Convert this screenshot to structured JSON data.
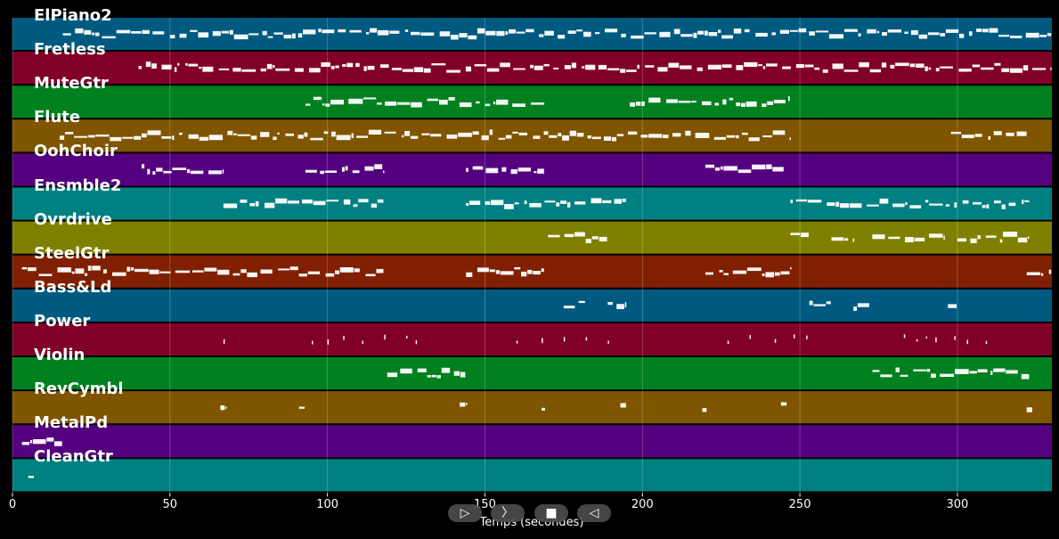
{
  "chart_data": {
    "type": "piano-roll",
    "xlabel": "Temps (secondes)",
    "xlim": [
      0,
      330
    ],
    "xticks": [
      0,
      50,
      100,
      150,
      200,
      250,
      300
    ],
    "tracks": [
      {
        "name": "ElPiano2",
        "color": "#005a80",
        "notes": [
          [
            16,
            160
          ],
          [
            160,
            330
          ]
        ]
      },
      {
        "name": "Fretless",
        "color": "#800028",
        "notes": [
          [
            40,
            330
          ]
        ]
      },
      {
        "name": "MuteGtr",
        "color": "#00801e",
        "notes": [
          [
            93,
            170
          ],
          [
            196,
            247
          ]
        ]
      },
      {
        "name": "Flute",
        "color": "#805500",
        "notes": [
          [
            15,
            247
          ],
          [
            298,
            323
          ]
        ]
      },
      {
        "name": "OohChoir",
        "color": "#55007f",
        "notes": [
          [
            41,
            67
          ],
          [
            93,
            118
          ],
          [
            144,
            169
          ],
          [
            220,
            246
          ]
        ]
      },
      {
        "name": "Ensmble2",
        "color": "#008080",
        "notes": [
          [
            67,
            118
          ],
          [
            144,
            195
          ],
          [
            247,
            323
          ]
        ]
      },
      {
        "name": "Ovrdrive",
        "color": "#808000",
        "notes": [
          [
            170,
            182
          ],
          [
            182,
            189
          ],
          [
            247,
            253
          ],
          [
            260,
            267
          ],
          [
            273,
            296
          ],
          [
            300,
            323
          ]
        ]
      },
      {
        "name": "SteelGtr",
        "color": "#802000",
        "notes": [
          [
            3,
            118
          ],
          [
            144,
            170
          ],
          [
            220,
            247
          ],
          [
            322,
            330
          ]
        ]
      },
      {
        "name": "Bass&Ld",
        "color": "#005a80",
        "notes": [
          [
            175,
            182
          ],
          [
            189,
            195
          ],
          [
            253,
            260
          ],
          [
            267,
            273
          ],
          [
            297,
            300
          ]
        ]
      },
      {
        "name": "Power",
        "color": "#800028",
        "notes": [
          [
            67,
            67.5
          ],
          [
            95,
            95.5
          ],
          [
            100,
            100.5
          ],
          [
            105,
            105.5
          ],
          [
            111,
            111.5
          ],
          [
            118,
            118.5
          ],
          [
            125,
            125.5
          ],
          [
            128,
            128.5
          ],
          [
            160,
            160.5
          ],
          [
            168,
            168.5
          ],
          [
            175,
            175.5
          ],
          [
            182,
            182.5
          ],
          [
            189,
            189.5
          ],
          [
            227,
            227.5
          ],
          [
            234,
            234.5
          ],
          [
            242,
            242.5
          ],
          [
            248,
            248.5
          ],
          [
            252,
            252.5
          ],
          [
            283,
            283.5
          ],
          [
            287,
            287.5
          ],
          [
            290,
            290.5
          ],
          [
            293,
            293.5
          ],
          [
            299,
            299.5
          ],
          [
            303,
            303.5
          ],
          [
            309,
            309.5
          ]
        ]
      },
      {
        "name": "Violin",
        "color": "#00801e",
        "notes": [
          [
            119,
            144
          ],
          [
            273,
            323
          ]
        ]
      },
      {
        "name": "RevCymbl",
        "color": "#805500",
        "notes": [
          [
            66,
            68
          ],
          [
            91,
            93
          ],
          [
            142,
            144
          ],
          [
            168,
            170
          ],
          [
            193,
            195
          ],
          [
            219,
            221
          ],
          [
            244,
            246
          ],
          [
            322,
            324
          ]
        ]
      },
      {
        "name": "MetalPd",
        "color": "#55007f",
        "notes": [
          [
            3,
            16
          ]
        ]
      },
      {
        "name": "CleanGtr",
        "color": "#008080",
        "notes": [
          [
            5,
            7
          ]
        ]
      }
    ]
  },
  "controls": {
    "play_glyph": "▷",
    "forward_glyph": "〉",
    "stop_glyph": "■",
    "back_glyph": "◁"
  }
}
